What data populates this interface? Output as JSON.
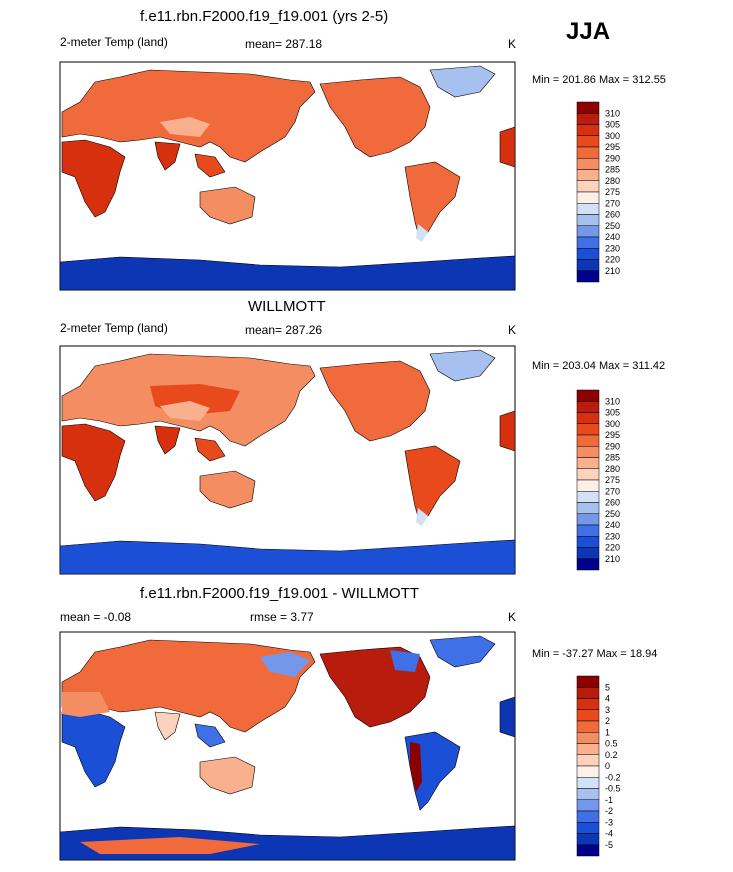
{
  "season": "JJA",
  "panels": [
    {
      "title": "f.e11.rbn.F2000.f19_f19.001 (yrs 2-5)",
      "left_label": "2-meter Temp (land)",
      "center_label": "mean= 287.18",
      "right_label": "K",
      "minmax": "Min = 201.86 Max = 312.55",
      "levels": [
        "310",
        "305",
        "300",
        "295",
        "290",
        "285",
        "280",
        "275",
        "270",
        "260",
        "250",
        "240",
        "230",
        "220",
        "210"
      ],
      "colors": [
        "#8b0000",
        "#b81c0c",
        "#d6300f",
        "#e84a1c",
        "#f06a3c",
        "#f58d63",
        "#f8b08f",
        "#fbd3bc",
        "#fdf0e6",
        "#d2e1f6",
        "#a6c1ef",
        "#7597ea",
        "#4070e6",
        "#1a4fd6",
        "#0c36b4",
        "#00008b"
      ]
    },
    {
      "title": "WILLMOTT",
      "left_label": "2-meter Temp (land)",
      "center_label": "mean= 287.26",
      "right_label": "K",
      "minmax": "Min = 203.04 Max = 311.42",
      "levels": [
        "310",
        "305",
        "300",
        "295",
        "290",
        "285",
        "280",
        "275",
        "270",
        "260",
        "250",
        "240",
        "230",
        "220",
        "210"
      ],
      "colors": [
        "#8b0000",
        "#b81c0c",
        "#d6300f",
        "#e84a1c",
        "#f06a3c",
        "#f58d63",
        "#f8b08f",
        "#fbd3bc",
        "#fdf0e6",
        "#d2e1f6",
        "#a6c1ef",
        "#7597ea",
        "#4070e6",
        "#1a4fd6",
        "#0c36b4",
        "#00008b"
      ]
    },
    {
      "title": "f.e11.rbn.F2000.f19_f19.001 - WILLMOTT",
      "left_label": "mean = -0.08",
      "center_label": "rmse = 3.77",
      "right_label": "K",
      "minmax": "Min = -37.27 Max = 18.94",
      "levels": [
        "5",
        "4",
        "3",
        "2",
        "1",
        "0.5",
        "0.2",
        "0",
        "-0.2",
        "-0.5",
        "-1",
        "-2",
        "-3",
        "-4",
        "-5"
      ],
      "colors": [
        "#8b0000",
        "#b81c0c",
        "#d6300f",
        "#e84a1c",
        "#f06a3c",
        "#f58d63",
        "#f8b08f",
        "#fbd3bc",
        "#fdf0e6",
        "#d2e1f6",
        "#a6c1ef",
        "#7597ea",
        "#4070e6",
        "#1a4fd6",
        "#0c36b4",
        "#00008b"
      ]
    }
  ]
}
